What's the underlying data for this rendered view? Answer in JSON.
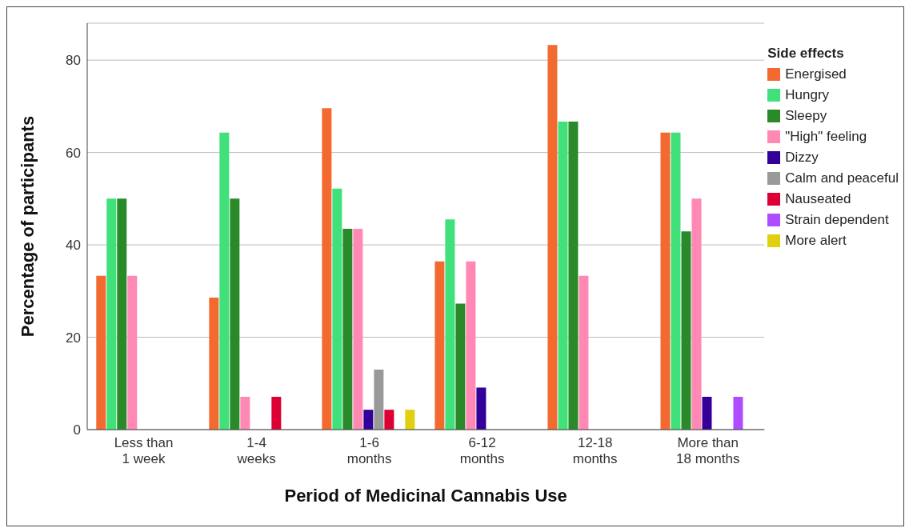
{
  "chart_data": {
    "type": "bar",
    "xlabel": "Period of Medicinal Cannabis Use",
    "ylabel": "Percentage of participants",
    "legend_title": "Side effects",
    "legend": "top right",
    "grid": "y",
    "categories": [
      "Less than\n1 week",
      "1-4\nweeks",
      "1-6\nmonths",
      "6-12\nmonths",
      "12-18\nmonths",
      "More than\n18 months"
    ],
    "ylim": [
      0,
      88
    ],
    "yticks": [
      0,
      20,
      40,
      60,
      80
    ],
    "series": [
      {
        "name": "Energised",
        "color": "#f26a30",
        "values": [
          33.3,
          28.6,
          69.6,
          36.4,
          83.3,
          64.3
        ]
      },
      {
        "name": "Hungry",
        "color": "#40e07a",
        "values": [
          50,
          64.3,
          52.2,
          45.5,
          66.7,
          64.3
        ]
      },
      {
        "name": "Sleepy",
        "color": "#2a8a2a",
        "values": [
          50,
          50,
          43.5,
          27.3,
          66.7,
          42.9
        ]
      },
      {
        "name": "\"High\" feeling",
        "color": "#ff88b4",
        "values": [
          33.3,
          7.1,
          43.5,
          36.4,
          33.3,
          50
        ]
      },
      {
        "name": "Dizzy",
        "color": "#330099",
        "values": [
          null,
          null,
          4.3,
          9.1,
          null,
          7.1
        ]
      },
      {
        "name": "Calm and peaceful",
        "color": "#999999",
        "values": [
          null,
          null,
          13,
          null,
          null,
          null
        ]
      },
      {
        "name": "Nauseated",
        "color": "#dd0033",
        "values": [
          null,
          7.1,
          4.3,
          null,
          null,
          null
        ]
      },
      {
        "name": "Strain dependent",
        "color": "#b04cff",
        "values": [
          null,
          null,
          null,
          null,
          null,
          7.1
        ]
      },
      {
        "name": "More alert",
        "color": "#e0d010",
        "values": [
          null,
          null,
          4.3,
          null,
          null,
          null
        ]
      }
    ]
  }
}
